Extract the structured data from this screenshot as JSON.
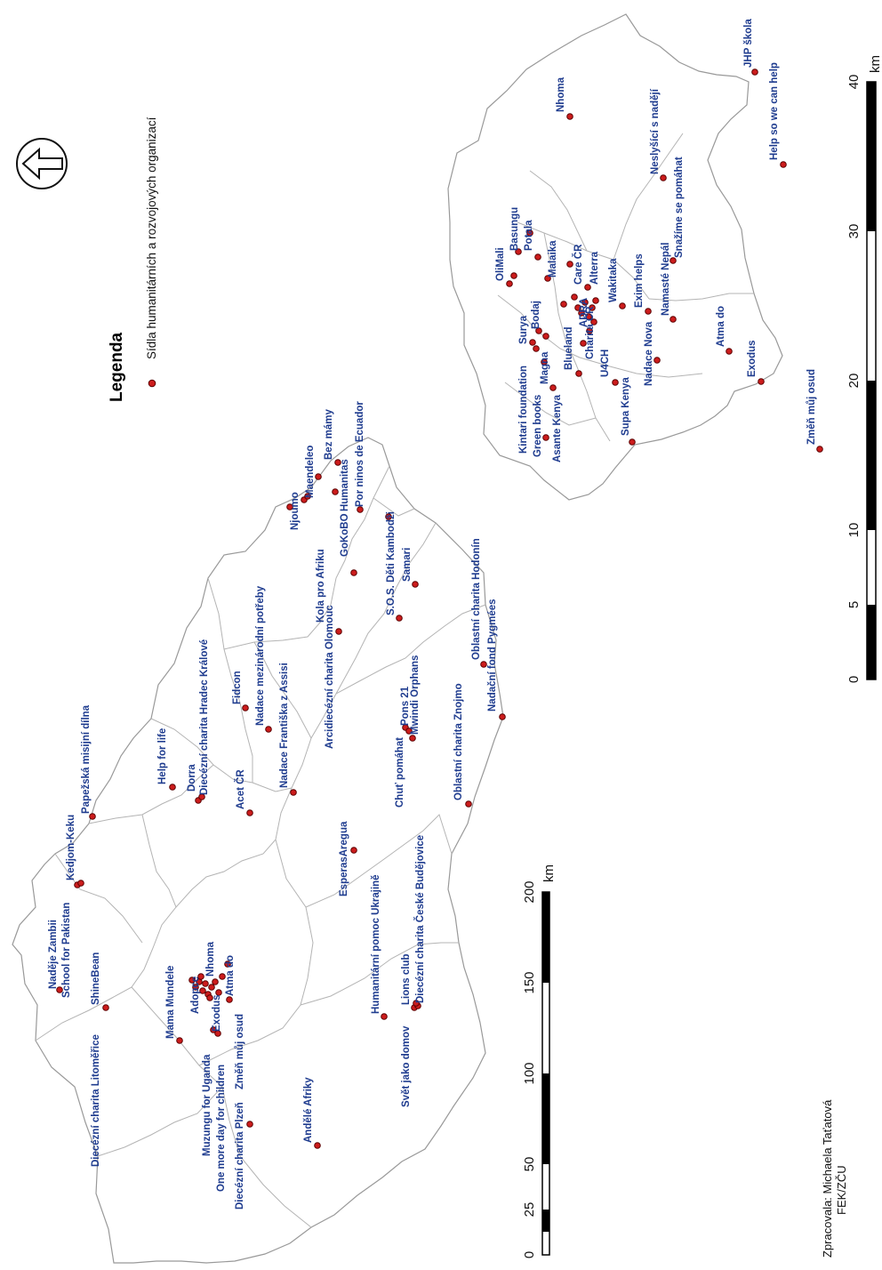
{
  "legend": {
    "title": "Legenda",
    "item": "Sídla humanitárních a rozvojových organizací",
    "point_color": "#cc1c1c",
    "label_color": "#1f3c8f"
  },
  "north_arrow": "north-arrow-icon",
  "scale_czech": {
    "ticks": [
      "0",
      "25",
      "50",
      "100",
      "150",
      "200"
    ],
    "unit": "km"
  },
  "scale_inset": {
    "ticks": [
      "0",
      "5",
      "10",
      "20",
      "30",
      "40"
    ],
    "unit": "km"
  },
  "author": {
    "line1": "Zpracovala: Michaela Taťatová",
    "line2": "FEK/ZČU"
  },
  "czech_labels": [
    "Naděje Zambii",
    "School for Pakistan",
    "Kedjom-Keku",
    "Papežská misijní dílna",
    "Diecézní charita Litoměřice",
    "ShineBean",
    "Help for life",
    "Dorra",
    "Diecézní charita Hradec Králové",
    "Acet ČR",
    "Fidcon",
    "Nadace mezinárodní potřeby",
    "Nadace Františka z Assisi",
    "Mama Mundele",
    "Adopce",
    "Nhoma",
    "Exodus",
    "Atma do",
    "Muzungu for Uganda",
    "One more day for children",
    "Diecézní charita Plzeň",
    "Změň můj osud",
    "Andělé Afriky",
    "EsperasAregua",
    "Humanitární pomoc Ukrajině",
    "Svět jako domov",
    "Lions club",
    "Diecézní charita České Budějovice",
    "Chuť pomáhat",
    "Pons 21",
    "Mwindi Orphans",
    "Oblastní charita Znojmo",
    "Arcidiecézní charita Olomouc",
    "Kola pro Afriku",
    "Njoumo",
    "Maendeleo",
    "Bez mámy",
    "GoKoBO",
    "Humanitas",
    "Por ninos de Ecuador",
    "S.O.S. Děti Kambodži",
    "Samari",
    "Oblastní charita Hodonín",
    "Nadační fond Pygmées"
  ],
  "inset_labels": [
    "OliMali",
    "Basungu",
    "Potala",
    "Nhoma",
    "Malaika",
    "Care ČR",
    "Alterra",
    "Kintari foundation",
    "Surya",
    "Bodaj",
    "Green books",
    "Magna",
    "Blueland",
    "Asante Kenya",
    "Charita ČR",
    "ADRA",
    "U4CH",
    "Wakitaka",
    "Supa Kenya",
    "Exim helps",
    "Nadace Nova",
    "Namasté Nepál",
    "Snažíme se pomáhat",
    "Neslyšící s nadějí",
    "Atma do",
    "Exodus",
    "Změň můj osud",
    "JHP škola",
    "Help so we can help"
  ]
}
